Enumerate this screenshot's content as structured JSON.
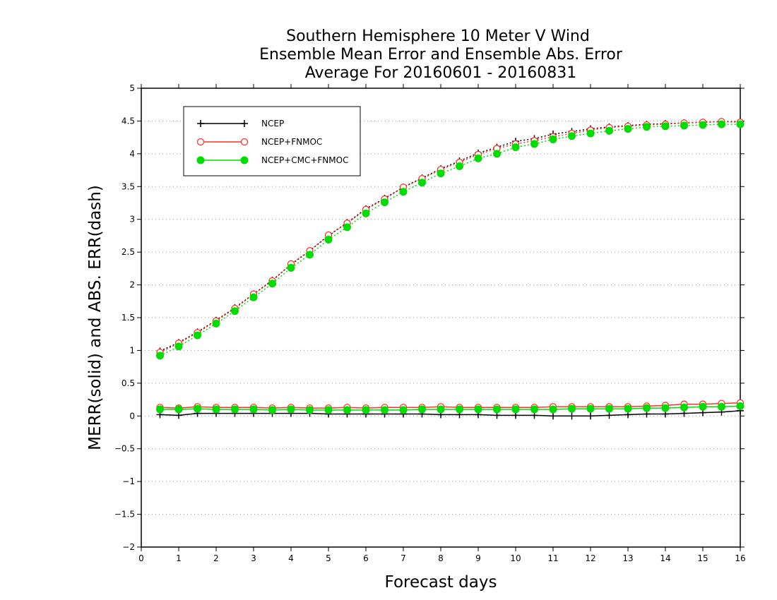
{
  "chart_data": {
    "type": "line",
    "title": [
      "Southern Hemisphere 10 Meter V Wind",
      "Ensemble Mean Error and Ensemble Abs. Error",
      "Average For 20160601 - 20160831"
    ],
    "xlabel": "Forecast days",
    "ylabel": "MERR(solid) and ABS. ERR(dash)",
    "xlim": [
      0,
      16
    ],
    "ylim": [
      -2,
      5
    ],
    "x_ticks": [
      0,
      1,
      2,
      3,
      4,
      5,
      6,
      7,
      8,
      9,
      10,
      11,
      12,
      13,
      14,
      15,
      16
    ],
    "y_ticks": [
      -2,
      -1.5,
      -1,
      -0.5,
      0,
      0.5,
      1,
      1.5,
      2,
      2.5,
      3,
      3.5,
      4,
      4.5,
      5
    ],
    "x_tick_labels": [
      "0",
      "1",
      "2",
      "3",
      "4",
      "5",
      "6",
      "7",
      "8",
      "9",
      "10",
      "11",
      "12",
      "13",
      "14",
      "15",
      "16"
    ],
    "y_tick_labels": [
      "−2",
      "−1.5",
      "−1",
      "−0.5",
      "0",
      "0.5",
      "1",
      "1.5",
      "2",
      "2.5",
      "3",
      "3.5",
      "4",
      "4.5",
      "5"
    ],
    "grid": "horizontal dotted",
    "legend_position": "top-left",
    "x": [
      0.5,
      1,
      1.5,
      2,
      2.5,
      3,
      3.5,
      4,
      4.5,
      5,
      5.5,
      6,
      6.5,
      7,
      7.5,
      8,
      8.5,
      9,
      9.5,
      10,
      10.5,
      11,
      11.5,
      12,
      12.5,
      13,
      13.5,
      14,
      14.5,
      15,
      15.5,
      16
    ],
    "series": [
      {
        "name": "NCEP",
        "color": "#000000",
        "marker": "plus",
        "merr": [
          0.02,
          0.01,
          0.04,
          0.04,
          0.04,
          0.04,
          0.04,
          0.04,
          0.04,
          0.03,
          0.03,
          0.03,
          0.03,
          0.03,
          0.03,
          0.02,
          0.02,
          0.02,
          0.01,
          0.01,
          0.01,
          0.0,
          0.0,
          0.0,
          0.01,
          0.02,
          0.03,
          0.03,
          0.04,
          0.05,
          0.06,
          0.08
        ],
        "abs_err": [
          0.99,
          1.12,
          1.28,
          1.46,
          1.65,
          1.86,
          2.07,
          2.31,
          2.52,
          2.75,
          2.95,
          3.16,
          3.32,
          3.49,
          3.63,
          3.77,
          3.89,
          4.01,
          4.1,
          4.19,
          4.23,
          4.3,
          4.34,
          4.38,
          4.41,
          4.43,
          4.45,
          4.46,
          4.47,
          4.48,
          4.49,
          4.49
        ]
      },
      {
        "name": "NCEP+FNMOC",
        "color": "#ff3030",
        "marker": "open-circle",
        "merr": [
          0.13,
          0.12,
          0.14,
          0.13,
          0.13,
          0.13,
          0.12,
          0.13,
          0.12,
          0.12,
          0.13,
          0.12,
          0.13,
          0.13,
          0.13,
          0.14,
          0.13,
          0.13,
          0.13,
          0.13,
          0.13,
          0.14,
          0.14,
          0.14,
          0.14,
          0.14,
          0.15,
          0.16,
          0.18,
          0.18,
          0.19,
          0.2
        ],
        "abs_err": [
          0.97,
          1.11,
          1.27,
          1.45,
          1.64,
          1.86,
          2.06,
          2.32,
          2.52,
          2.76,
          2.94,
          3.15,
          3.31,
          3.49,
          3.62,
          3.76,
          3.87,
          3.99,
          4.08,
          4.15,
          4.2,
          4.26,
          4.31,
          4.36,
          4.4,
          4.42,
          4.44,
          4.45,
          4.47,
          4.48,
          4.49,
          4.48
        ]
      },
      {
        "name": "NCEP+CMC+FNMOC",
        "color": "#00dd00",
        "marker": "filled-circle",
        "merr": [
          0.1,
          0.1,
          0.11,
          0.1,
          0.1,
          0.1,
          0.09,
          0.1,
          0.09,
          0.09,
          0.09,
          0.09,
          0.09,
          0.09,
          0.1,
          0.1,
          0.1,
          0.1,
          0.1,
          0.1,
          0.1,
          0.1,
          0.11,
          0.11,
          0.11,
          0.11,
          0.12,
          0.12,
          0.13,
          0.14,
          0.14,
          0.15
        ],
        "abs_err": [
          0.92,
          1.06,
          1.23,
          1.41,
          1.6,
          1.81,
          2.02,
          2.26,
          2.46,
          2.69,
          2.88,
          3.09,
          3.26,
          3.42,
          3.56,
          3.7,
          3.81,
          3.93,
          4.0,
          4.1,
          4.15,
          4.22,
          4.27,
          4.31,
          4.35,
          4.38,
          4.41,
          4.42,
          4.43,
          4.44,
          4.45,
          4.45
        ]
      }
    ]
  }
}
